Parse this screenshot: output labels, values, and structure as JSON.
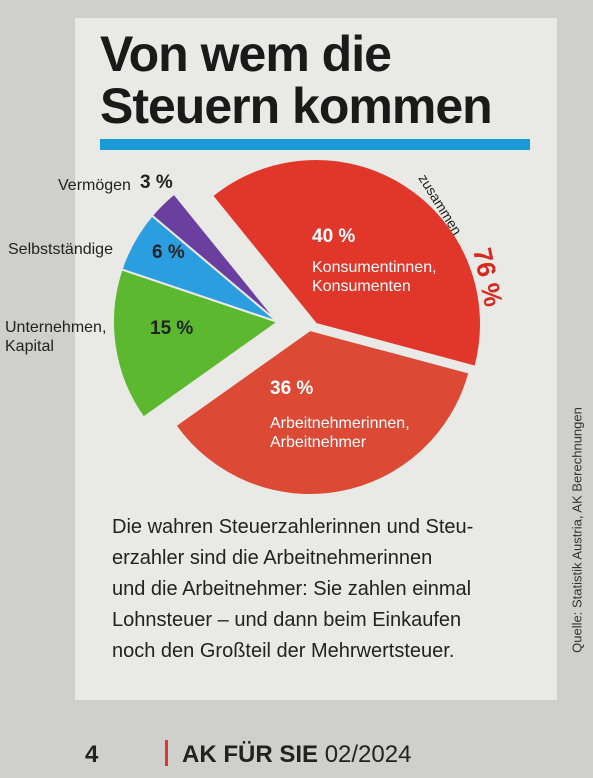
{
  "chart_data": {
    "type": "pie",
    "title": "Von wem die Steuern kommen",
    "categories": [
      "Konsumentinnen, Konsumenten",
      "Arbeitnehmerinnen, Arbeitnehmer",
      "Unternehmen, Kapital",
      "Selbstständige",
      "Vermögen"
    ],
    "values": [
      40,
      36,
      15,
      6,
      3
    ],
    "value_labels": [
      "40 %",
      "36 %",
      "15 %",
      "6 %",
      "3 %"
    ],
    "colors": [
      "#e1372a",
      "#dc4a36",
      "#5bb82f",
      "#2b9ee0",
      "#6a3fa0"
    ],
    "annotation": "zusammen",
    "annotation_value_label": "76 %"
  },
  "caption": [
    "Die wahren Steuerzahlerinnen und Steu-",
    "erzahler sind die Arbeitnehmerinnen",
    "und die Arbeitnehmer: Sie zahlen einmal",
    "Lohnsteuer – und dann beim Einkaufen",
    "noch den Großteil der Mehrwertsteuer."
  ],
  "source": "Quelle: Statistik Austria, AK Berechnungen",
  "footer": {
    "page": "4",
    "magazine": "AK FÜR SIE",
    "issue": "02/2024"
  }
}
